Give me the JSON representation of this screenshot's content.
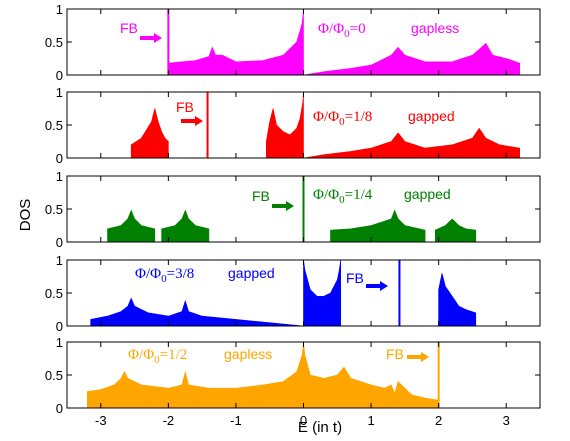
{
  "chart_data": {
    "type": "area",
    "layout": "stacked-panels",
    "xlabel": "E (in t)",
    "ylabel": "DOS",
    "xlim": [
      -3.5,
      3.5
    ],
    "ylim": [
      0,
      1
    ],
    "xticks": [
      "-3",
      "-2",
      "-1",
      "0",
      "1",
      "2",
      "3"
    ],
    "yticks": [
      "0",
      "0.5",
      "1"
    ],
    "panels": [
      {
        "flux_label": "Φ/Φ0=0",
        "flux_num": "Φ/Φ",
        "flux_sub": "0",
        "flux_val": "=0",
        "state": "gapless",
        "color": "#ff00ff",
        "fb_label": "FB",
        "fb_energy": -2.0,
        "fb_arrow": "right",
        "band_edges": [
          [
            -2.0,
            0.0
          ],
          [
            0.0,
            3.2
          ]
        ],
        "series": [
          {
            "x": [
              -2.0,
              -1.8,
              -1.6,
              -1.4,
              -1.35,
              -1.3,
              -1.2,
              -1.0,
              -0.6,
              -0.3,
              -0.1,
              -0.02,
              0.0
            ],
            "y": [
              0.18,
              0.2,
              0.22,
              0.28,
              0.42,
              0.3,
              0.3,
              0.2,
              0.22,
              0.3,
              0.5,
              0.78,
              1.0
            ]
          },
          {
            "x": [
              0.0,
              0.3,
              0.7,
              1.0,
              1.3,
              1.4,
              1.5,
              1.8,
              2.2,
              2.5,
              2.7,
              2.8,
              3.0,
              3.2
            ],
            "y": [
              0.0,
              0.05,
              0.1,
              0.15,
              0.3,
              0.42,
              0.3,
              0.2,
              0.2,
              0.3,
              0.48,
              0.3,
              0.25,
              0.18
            ]
          }
        ]
      },
      {
        "flux_label": "Φ/Φ0=1/8",
        "flux_num": "Φ/Φ",
        "flux_sub": "0",
        "flux_val": "=1/8",
        "state": "gapped",
        "color": "#ff0000",
        "fb_label": "FB",
        "fb_energy": -1.42,
        "fb_arrow": "right",
        "band_edges": [
          [
            -2.55,
            -2.0
          ],
          [
            -0.55,
            0.0
          ],
          [
            0.0,
            3.2
          ]
        ],
        "series": [
          {
            "x": [
              -2.55,
              -2.4,
              -2.25,
              -2.2,
              -2.15,
              -2.1,
              -2.05,
              -2.0
            ],
            "y": [
              0.2,
              0.3,
              0.55,
              0.75,
              0.55,
              0.4,
              0.3,
              0.25
            ]
          },
          {
            "x": [
              -0.55,
              -0.5,
              -0.45,
              -0.4,
              -0.3,
              -0.2,
              -0.1,
              -0.05,
              -0.01,
              0.0
            ],
            "y": [
              0.25,
              0.55,
              0.75,
              0.5,
              0.4,
              0.35,
              0.45,
              0.6,
              0.85,
              1.0
            ]
          },
          {
            "x": [
              0.0,
              0.3,
              0.7,
              1.0,
              1.3,
              1.4,
              1.5,
              1.8,
              2.2,
              2.5,
              2.6,
              2.7,
              2.9,
              3.2
            ],
            "y": [
              0.0,
              0.05,
              0.1,
              0.15,
              0.25,
              0.38,
              0.25,
              0.15,
              0.2,
              0.3,
              0.45,
              0.3,
              0.2,
              0.15
            ]
          }
        ]
      },
      {
        "flux_label": "Φ/Φ0=1/4",
        "flux_num": "Φ/Φ",
        "flux_sub": "0",
        "flux_val": "=1/4",
        "state": "gapped",
        "color": "#008000",
        "fb_label": "FB",
        "fb_energy": 0.0,
        "fb_arrow": "right",
        "band_edges": [
          [
            -2.9,
            -2.2
          ],
          [
            -2.1,
            -1.4
          ],
          [
            0.4,
            1.8
          ],
          [
            1.95,
            2.55
          ]
        ],
        "series": [
          {
            "x": [
              -2.9,
              -2.7,
              -2.6,
              -2.55,
              -2.5,
              -2.4,
              -2.2
            ],
            "y": [
              0.2,
              0.25,
              0.35,
              0.48,
              0.35,
              0.25,
              0.2
            ]
          },
          {
            "x": [
              -2.1,
              -1.9,
              -1.8,
              -1.75,
              -1.7,
              -1.6,
              -1.4
            ],
            "y": [
              0.2,
              0.25,
              0.35,
              0.48,
              0.35,
              0.25,
              0.2
            ]
          },
          {
            "x": [
              0.4,
              0.7,
              1.0,
              1.3,
              1.35,
              1.4,
              1.5,
              1.8
            ],
            "y": [
              0.18,
              0.2,
              0.25,
              0.35,
              0.48,
              0.35,
              0.25,
              0.18
            ]
          },
          {
            "x": [
              1.95,
              2.1,
              2.2,
              2.3,
              2.4,
              2.55
            ],
            "y": [
              0.18,
              0.25,
              0.35,
              0.25,
              0.2,
              0.18
            ]
          }
        ]
      },
      {
        "flux_label": "Φ/Φ0=3/8",
        "flux_num": "Φ/Φ",
        "flux_sub": "0",
        "flux_val": "=3/8",
        "state": "gapped",
        "color": "#0000ff",
        "fb_label": "FB",
        "fb_energy": 1.42,
        "fb_arrow": "right",
        "band_edges": [
          [
            -3.15,
            0.0
          ],
          [
            0.0,
            0.55
          ],
          [
            2.0,
            2.55
          ]
        ],
        "series": [
          {
            "x": [
              -3.15,
              -2.9,
              -2.7,
              -2.6,
              -2.55,
              -2.5,
              -2.3,
              -2.0,
              -1.8,
              -1.75,
              -1.7,
              -1.5,
              -1.0,
              -0.5,
              -0.2,
              0.0
            ],
            "y": [
              0.1,
              0.15,
              0.22,
              0.3,
              0.42,
              0.3,
              0.2,
              0.15,
              0.22,
              0.38,
              0.22,
              0.15,
              0.1,
              0.05,
              0.02,
              0.0
            ]
          },
          {
            "x": [
              0.0,
              0.02,
              0.1,
              0.2,
              0.3,
              0.4,
              0.5,
              0.53,
              0.55
            ],
            "y": [
              1.0,
              0.85,
              0.55,
              0.45,
              0.45,
              0.5,
              0.7,
              0.85,
              1.0
            ]
          },
          {
            "x": [
              2.0,
              2.05,
              2.1,
              2.2,
              2.3,
              2.4,
              2.55
            ],
            "y": [
              0.55,
              0.8,
              0.6,
              0.45,
              0.3,
              0.25,
              0.2
            ]
          }
        ]
      },
      {
        "flux_label": "Φ/Φ0=1/2",
        "flux_num": "Φ/Φ",
        "flux_sub": "0",
        "flux_val": "=1/2",
        "state": "gapless",
        "color": "#ffa500",
        "fb_label": "FB",
        "fb_energy": 2.0,
        "fb_arrow": "right",
        "band_edges": [
          [
            -3.2,
            0.0
          ],
          [
            0.0,
            2.0
          ]
        ],
        "series": [
          {
            "x": [
              -3.2,
              -3.0,
              -2.8,
              -2.7,
              -2.65,
              -2.6,
              -2.4,
              -2.0,
              -1.8,
              -1.75,
              -1.7,
              -1.4,
              -1.0,
              -0.6,
              -0.3,
              -0.1,
              -0.02,
              0.0
            ],
            "y": [
              0.25,
              0.28,
              0.35,
              0.45,
              0.55,
              0.45,
              0.35,
              0.3,
              0.35,
              0.55,
              0.35,
              0.3,
              0.3,
              0.35,
              0.4,
              0.55,
              0.8,
              1.0
            ]
          },
          {
            "x": [
              0.0,
              0.02,
              0.1,
              0.3,
              0.5,
              0.6,
              0.7,
              1.0,
              1.2,
              1.3,
              1.35,
              1.4,
              1.5,
              1.6,
              1.8,
              2.0
            ],
            "y": [
              1.0,
              0.8,
              0.5,
              0.45,
              0.5,
              0.62,
              0.45,
              0.35,
              0.3,
              0.35,
              0.22,
              0.4,
              0.3,
              0.2,
              0.15,
              0.12
            ]
          }
        ]
      }
    ]
  }
}
